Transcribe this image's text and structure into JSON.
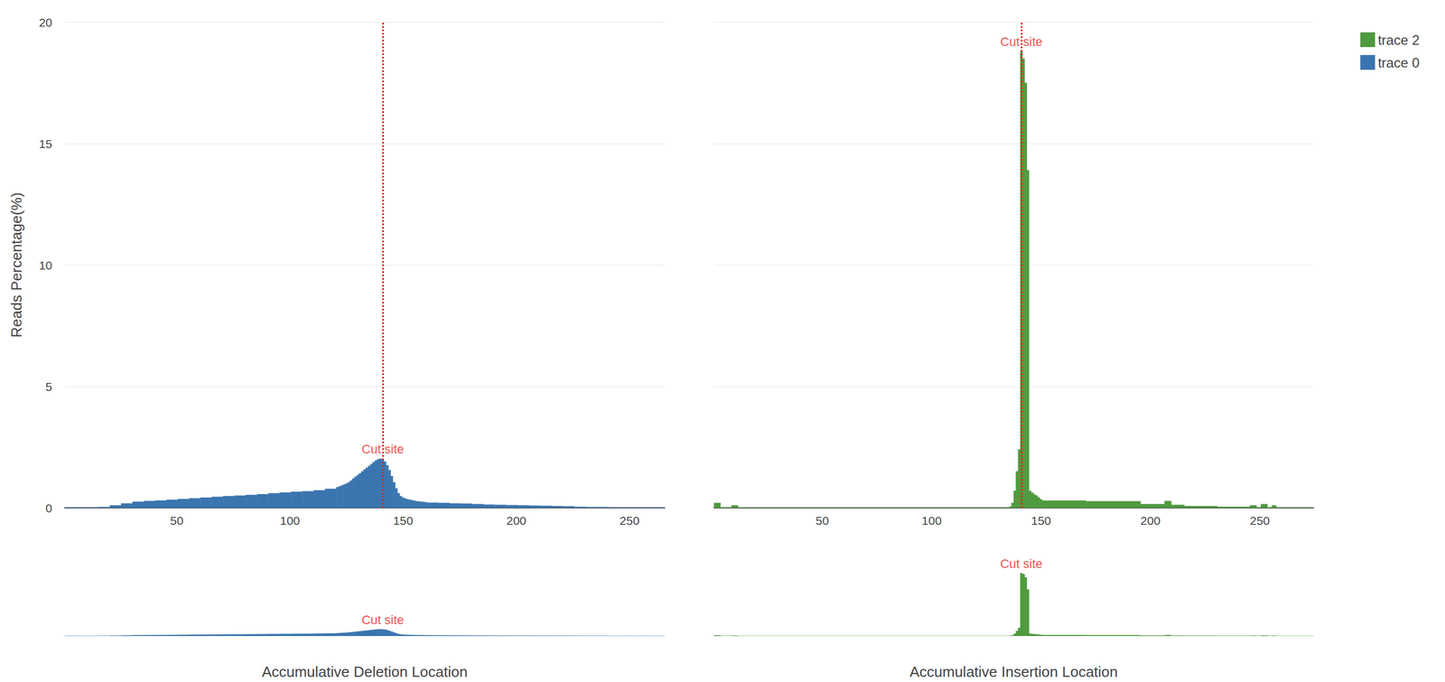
{
  "chart_data": [
    {
      "type": "histogram",
      "name": "trace 0",
      "color": "#3b75af",
      "xlabel": "Accumulative Deletion Location",
      "ylabel": "Reads Percentage(%)",
      "bins": [
        0.5,
        5.5,
        10.5,
        15.5,
        20.5,
        25.5,
        30.5,
        35.5,
        40.5,
        45.5,
        50.5,
        55.5,
        60.5,
        65.5,
        70.5,
        75.5,
        80.5,
        85.5,
        90.5,
        95.5,
        100.5,
        105.5,
        110.5,
        115.5,
        120.5,
        121.5,
        122.5,
        123.5,
        124.5,
        125.5,
        126.5,
        127.5,
        128.5,
        129.5,
        130.5,
        131.5,
        132.5,
        133.5,
        134.5,
        135.5,
        136.5,
        137.5,
        138.5,
        139.5,
        140.5,
        141.5,
        142.5,
        143.5,
        144.5,
        145.5,
        146.5,
        147.5,
        148.5,
        149.5,
        150.5,
        151.5,
        152.5,
        153.5,
        154.5,
        155.5,
        156.5,
        157.5,
        158.5,
        159.5,
        160.5,
        165.5,
        170.5,
        175.5,
        180.5,
        185.5,
        190.5,
        195.5,
        200.5,
        205.5,
        210.5,
        215.5,
        220.5,
        225.5,
        230.5,
        235.5,
        240.5,
        245.5,
        250.5,
        255.5,
        260.5,
        265.5
      ],
      "counts": [
        0.02,
        0.02,
        0.02,
        0.03,
        0.1,
        0.18,
        0.25,
        0.28,
        0.3,
        0.33,
        0.36,
        0.39,
        0.42,
        0.45,
        0.48,
        0.5,
        0.53,
        0.56,
        0.6,
        0.63,
        0.66,
        0.68,
        0.72,
        0.78,
        0.85,
        0.88,
        0.92,
        0.96,
        1.0,
        1.05,
        1.12,
        1.2,
        1.28,
        1.35,
        1.42,
        1.5,
        1.58,
        1.65,
        1.72,
        1.8,
        1.88,
        1.95,
        2.0,
        2.02,
        1.98,
        1.9,
        1.75,
        1.55,
        1.3,
        1.05,
        0.8,
        0.6,
        0.48,
        0.42,
        0.38,
        0.35,
        0.33,
        0.31,
        0.29,
        0.27,
        0.26,
        0.25,
        0.24,
        0.23,
        0.21,
        0.2,
        0.18,
        0.17,
        0.15,
        0.13,
        0.12,
        0.11,
        0.1,
        0.09,
        0.08,
        0.07,
        0.06,
        0.04,
        0.03,
        0.03,
        0.02,
        0.02,
        0.02,
        0.02,
        0.02
      ],
      "xlim": [
        0.5,
        265.5
      ],
      "xticks": [
        50,
        100,
        150,
        200,
        250
      ],
      "ylim": [
        0,
        20
      ],
      "yticks": [
        0,
        5,
        10,
        15,
        20
      ],
      "grid": true,
      "legend": "top-right",
      "tick_labels": true,
      "annotations": [
        {
          "x": 141,
          "text": "Cut site"
        }
      ]
    },
    {
      "type": "histogram",
      "name": "trace 2",
      "color": "#4e9a3e",
      "xlabel": "Accumulative Insertion Location",
      "bins": [
        0.5,
        3.5,
        8.5,
        11.5,
        135.5,
        136.5,
        137.5,
        138.5,
        139.5,
        140.5,
        141.5,
        142.5,
        143.5,
        144.5,
        145.5,
        146.5,
        147.5,
        148.5,
        149.5,
        150.5,
        170.5,
        195.5,
        206.5,
        209.5,
        215.5,
        230.5,
        245.5,
        248.5,
        250.5,
        253.5,
        255.5,
        257.5,
        274.5
      ],
      "counts": [
        0.2,
        0.02,
        0.1,
        0.01,
        0.05,
        0.2,
        0.7,
        1.5,
        2.4,
        18.8,
        18.5,
        17.5,
        13.9,
        0.7,
        0.62,
        0.55,
        0.5,
        0.42,
        0.35,
        0.3,
        0.27,
        0.15,
        0.28,
        0.12,
        0.07,
        0.04,
        0.1,
        0.02,
        0.15,
        0.02,
        0.1,
        0.02
      ],
      "xlim": [
        0.5,
        274.5
      ],
      "xticks": [
        50,
        100,
        150,
        200,
        250
      ],
      "ylim": [
        0,
        20
      ],
      "yticks": [
        0,
        5,
        10,
        15,
        20
      ],
      "grid": true,
      "legend": "top-right",
      "tick_labels": "x",
      "annotations": [
        {
          "x": 141,
          "text": "Cut site"
        }
      ]
    }
  ]
}
